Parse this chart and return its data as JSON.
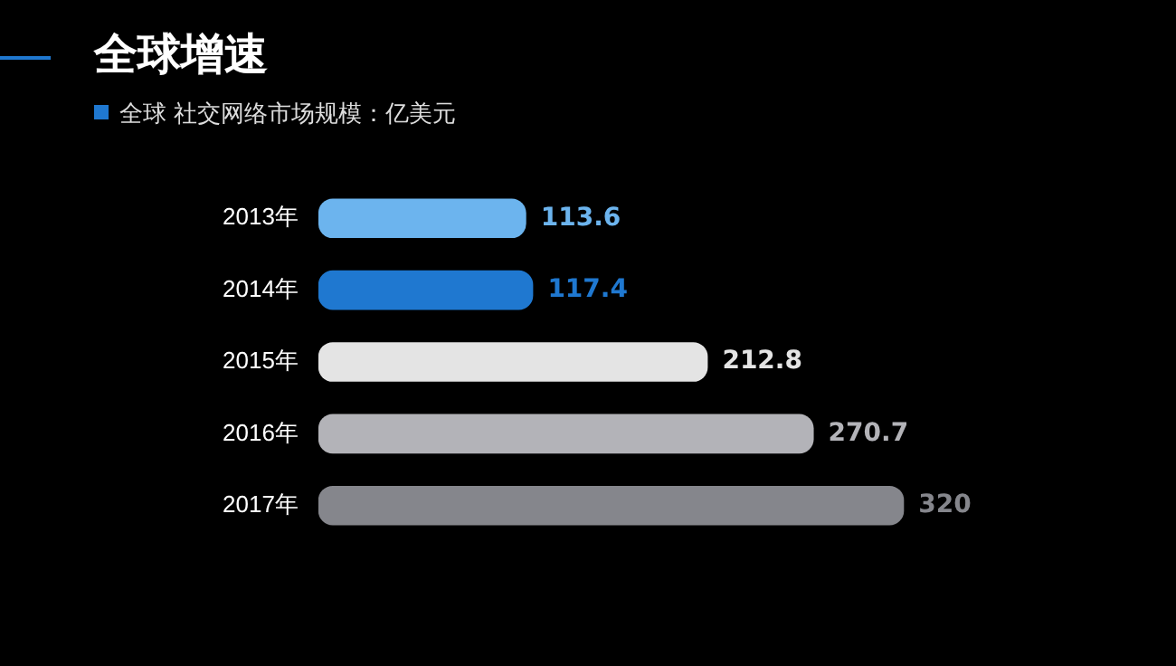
{
  "chart_data": {
    "type": "bar",
    "orientation": "horizontal",
    "title": "全球增速",
    "subtitle": "全球 社交网络市场规模：亿美元",
    "categories": [
      "2013年",
      "2014年",
      "2015年",
      "2016年",
      "2017年"
    ],
    "values": [
      113.6,
      117.4,
      212.8,
      270.7,
      320
    ],
    "colors": [
      "#6cb4ee",
      "#1f78d0",
      "#e4e4e4",
      "#b3b3b8",
      "#85868c"
    ],
    "data_labels": true,
    "legend": false
  }
}
